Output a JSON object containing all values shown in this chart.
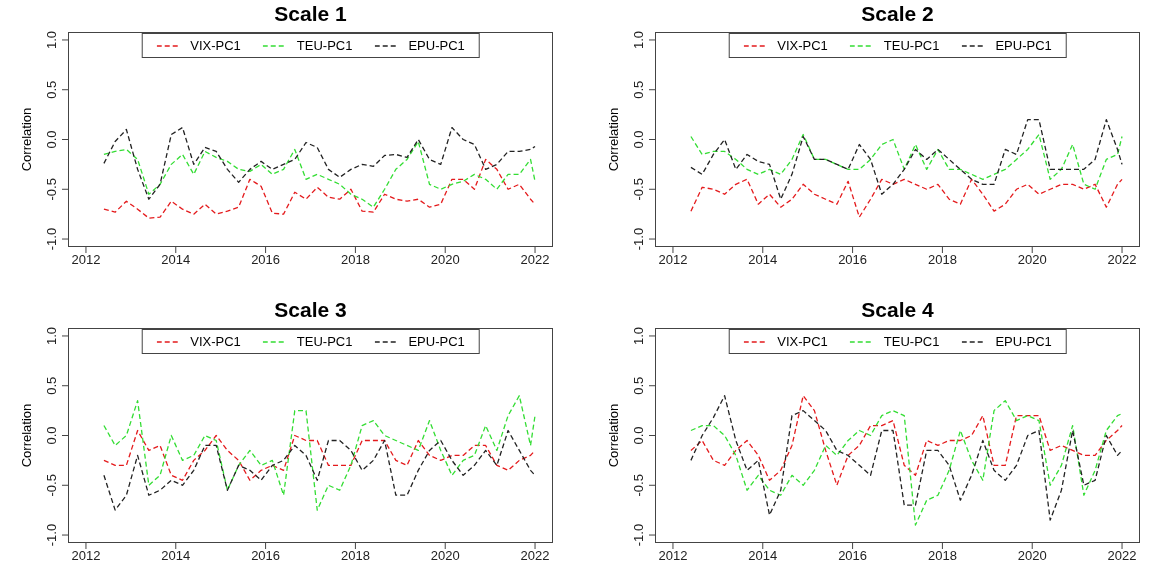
{
  "chart_data": [
    {
      "type": "line",
      "title": "Scale 1",
      "ylabel": "Correlation",
      "legend": "top",
      "line_style": "dashed",
      "marker": "none",
      "xlim": [
        2011.6,
        2022.4
      ],
      "ylim": [
        -1.08,
        1.08
      ],
      "xticks": [
        2012,
        2014,
        2016,
        2018,
        2020,
        2022
      ],
      "yticks": [
        {
          "value": -1,
          "label": "-1.0"
        },
        {
          "value": -0.5,
          "label": "-0.5"
        },
        {
          "value": 0,
          "label": "0.0"
        },
        {
          "value": 0.5,
          "label": "0.5"
        },
        {
          "value": 1,
          "label": "1.0"
        }
      ],
      "x": [
        2012.4,
        2012.65,
        2012.9,
        2013.15,
        2013.4,
        2013.65,
        2013.9,
        2014.15,
        2014.4,
        2014.65,
        2014.9,
        2015.15,
        2015.4,
        2015.65,
        2015.9,
        2016.15,
        2016.4,
        2016.65,
        2016.9,
        2017.15,
        2017.4,
        2017.65,
        2017.9,
        2018.15,
        2018.4,
        2018.65,
        2018.9,
        2019.15,
        2019.4,
        2019.65,
        2019.9,
        2020.15,
        2020.4,
        2020.65,
        2020.9,
        2021.15,
        2021.4,
        2021.65,
        2021.9,
        2022.0
      ],
      "series": [
        {
          "name": "VIX-PC1",
          "color": "#e41a1c",
          "values": [
            -0.7,
            -0.73,
            -0.62,
            -0.7,
            -0.79,
            -0.78,
            -0.62,
            -0.7,
            -0.75,
            -0.65,
            -0.75,
            -0.72,
            -0.68,
            -0.4,
            -0.47,
            -0.74,
            -0.75,
            -0.53,
            -0.6,
            -0.48,
            -0.58,
            -0.6,
            -0.5,
            -0.72,
            -0.73,
            -0.55,
            -0.6,
            -0.62,
            -0.6,
            -0.68,
            -0.65,
            -0.4,
            -0.4,
            -0.5,
            -0.2,
            -0.3,
            -0.5,
            -0.45,
            -0.6,
            -0.65
          ]
        },
        {
          "name": "TEU-PC1",
          "color": "#33dd33",
          "values": [
            -0.15,
            -0.12,
            -0.1,
            -0.2,
            -0.55,
            -0.45,
            -0.25,
            -0.15,
            -0.35,
            -0.12,
            -0.18,
            -0.22,
            -0.3,
            -0.32,
            -0.25,
            -0.35,
            -0.3,
            -0.1,
            -0.4,
            -0.35,
            -0.4,
            -0.45,
            -0.55,
            -0.6,
            -0.68,
            -0.5,
            -0.3,
            -0.2,
            -0.02,
            -0.45,
            -0.5,
            -0.45,
            -0.42,
            -0.35,
            -0.4,
            -0.5,
            -0.35,
            -0.35,
            -0.2,
            -0.42
          ]
        },
        {
          "name": "EPU-PC1",
          "color": "#222222",
          "values": [
            -0.24,
            -0.02,
            0.1,
            -0.3,
            -0.6,
            -0.45,
            0.05,
            0.12,
            -0.25,
            -0.08,
            -0.12,
            -0.3,
            -0.43,
            -0.3,
            -0.22,
            -0.3,
            -0.25,
            -0.2,
            -0.03,
            -0.08,
            -0.3,
            -0.38,
            -0.3,
            -0.25,
            -0.27,
            -0.16,
            -0.15,
            -0.18,
            0.0,
            -0.2,
            -0.25,
            0.12,
            0.0,
            -0.05,
            -0.3,
            -0.25,
            -0.12,
            -0.12,
            -0.1,
            -0.07
          ]
        }
      ]
    },
    {
      "type": "line",
      "title": "Scale 2",
      "ylabel": "Correlation",
      "legend": "top",
      "line_style": "dashed",
      "marker": "none",
      "xlim": [
        2011.6,
        2022.4
      ],
      "ylim": [
        -1.08,
        1.08
      ],
      "xticks": [
        2012,
        2014,
        2016,
        2018,
        2020,
        2022
      ],
      "yticks": [
        {
          "value": -1,
          "label": "-1.0"
        },
        {
          "value": -0.5,
          "label": "-0.5"
        },
        {
          "value": 0,
          "label": "0.0"
        },
        {
          "value": 0.5,
          "label": "0.5"
        },
        {
          "value": 1,
          "label": "1.0"
        }
      ],
      "x": [
        2012.4,
        2012.65,
        2012.9,
        2013.15,
        2013.4,
        2013.65,
        2013.9,
        2014.15,
        2014.4,
        2014.65,
        2014.9,
        2015.15,
        2015.4,
        2015.65,
        2015.9,
        2016.15,
        2016.4,
        2016.65,
        2016.9,
        2017.15,
        2017.4,
        2017.65,
        2017.9,
        2018.15,
        2018.4,
        2018.65,
        2018.9,
        2019.15,
        2019.4,
        2019.65,
        2019.9,
        2020.15,
        2020.4,
        2020.65,
        2020.9,
        2021.15,
        2021.4,
        2021.65,
        2021.9,
        2022.0
      ],
      "series": [
        {
          "name": "VIX-PC1",
          "color": "#e41a1c",
          "values": [
            -0.72,
            -0.48,
            -0.5,
            -0.55,
            -0.45,
            -0.4,
            -0.65,
            -0.55,
            -0.68,
            -0.6,
            -0.45,
            -0.55,
            -0.6,
            -0.65,
            -0.42,
            -0.78,
            -0.6,
            -0.4,
            -0.45,
            -0.4,
            -0.45,
            -0.5,
            -0.45,
            -0.6,
            -0.65,
            -0.4,
            -0.55,
            -0.72,
            -0.65,
            -0.5,
            -0.45,
            -0.55,
            -0.5,
            -0.45,
            -0.45,
            -0.5,
            -0.45,
            -0.68,
            -0.45,
            -0.4
          ]
        },
        {
          "name": "TEU-PC1",
          "color": "#33dd33",
          "values": [
            0.03,
            -0.15,
            -0.12,
            -0.12,
            -0.2,
            -0.3,
            -0.35,
            -0.3,
            -0.35,
            -0.2,
            0.05,
            -0.2,
            -0.2,
            -0.25,
            -0.3,
            -0.3,
            -0.2,
            -0.05,
            0.0,
            -0.3,
            -0.05,
            -0.3,
            -0.1,
            -0.3,
            -0.3,
            -0.35,
            -0.4,
            -0.35,
            -0.3,
            -0.2,
            -0.1,
            0.05,
            -0.4,
            -0.3,
            -0.05,
            -0.45,
            -0.5,
            -0.2,
            -0.15,
            0.03
          ]
        },
        {
          "name": "EPU-PC1",
          "color": "#222222",
          "values": [
            -0.28,
            -0.35,
            -0.15,
            0.0,
            -0.3,
            -0.15,
            -0.22,
            -0.25,
            -0.6,
            -0.35,
            0.03,
            -0.2,
            -0.2,
            -0.25,
            -0.3,
            -0.05,
            -0.2,
            -0.55,
            -0.45,
            -0.3,
            -0.1,
            -0.2,
            -0.1,
            -0.2,
            -0.3,
            -0.4,
            -0.45,
            -0.45,
            -0.1,
            -0.15,
            0.2,
            0.2,
            -0.3,
            -0.3,
            -0.3,
            -0.3,
            -0.2,
            0.2,
            -0.1,
            -0.25
          ]
        }
      ]
    },
    {
      "type": "line",
      "title": "Scale 3",
      "ylabel": "Correlation",
      "legend": "top",
      "line_style": "dashed",
      "marker": "none",
      "xlim": [
        2011.6,
        2022.4
      ],
      "ylim": [
        -1.08,
        1.08
      ],
      "xticks": [
        2012,
        2014,
        2016,
        2018,
        2020,
        2022
      ],
      "yticks": [
        {
          "value": -1,
          "label": "-1.0"
        },
        {
          "value": -0.5,
          "label": "-0.5"
        },
        {
          "value": 0,
          "label": "0.0"
        },
        {
          "value": 0.5,
          "label": "0.5"
        },
        {
          "value": 1,
          "label": "1.0"
        }
      ],
      "x": [
        2012.4,
        2012.65,
        2012.9,
        2013.15,
        2013.4,
        2013.65,
        2013.9,
        2014.15,
        2014.4,
        2014.65,
        2014.9,
        2015.15,
        2015.4,
        2015.65,
        2015.9,
        2016.15,
        2016.4,
        2016.65,
        2016.9,
        2017.15,
        2017.4,
        2017.65,
        2017.9,
        2018.15,
        2018.4,
        2018.65,
        2018.9,
        2019.15,
        2019.4,
        2019.65,
        2019.9,
        2020.15,
        2020.4,
        2020.65,
        2020.9,
        2021.15,
        2021.4,
        2021.65,
        2021.9,
        2022.0
      ],
      "series": [
        {
          "name": "VIX-PC1",
          "color": "#e41a1c",
          "values": [
            -0.25,
            -0.3,
            -0.3,
            0.05,
            -0.15,
            -0.1,
            -0.4,
            -0.45,
            -0.25,
            -0.15,
            0.0,
            -0.15,
            -0.25,
            -0.45,
            -0.35,
            -0.3,
            -0.35,
            0.0,
            -0.05,
            -0.05,
            -0.3,
            -0.3,
            -0.3,
            -0.05,
            -0.05,
            -0.05,
            -0.25,
            -0.3,
            -0.05,
            -0.2,
            -0.25,
            -0.2,
            -0.2,
            -0.1,
            -0.1,
            -0.3,
            -0.35,
            -0.25,
            -0.2,
            -0.15
          ]
        },
        {
          "name": "TEU-PC1",
          "color": "#33dd33",
          "values": [
            0.1,
            -0.1,
            0.0,
            0.35,
            -0.5,
            -0.4,
            0.0,
            -0.25,
            -0.2,
            0.0,
            -0.05,
            -0.55,
            -0.3,
            -0.15,
            -0.3,
            -0.25,
            -0.6,
            0.25,
            0.25,
            -0.75,
            -0.5,
            -0.55,
            -0.3,
            0.1,
            0.15,
            0.0,
            -0.05,
            -0.1,
            -0.15,
            0.15,
            -0.15,
            -0.4,
            -0.25,
            -0.2,
            0.1,
            -0.15,
            0.2,
            0.4,
            -0.1,
            0.2
          ]
        },
        {
          "name": "EPU-PC1",
          "color": "#222222",
          "values": [
            -0.4,
            -0.75,
            -0.6,
            -0.2,
            -0.6,
            -0.55,
            -0.45,
            -0.5,
            -0.35,
            -0.1,
            -0.1,
            -0.55,
            -0.3,
            -0.35,
            -0.45,
            -0.3,
            -0.25,
            -0.1,
            -0.2,
            -0.45,
            -0.05,
            -0.05,
            -0.15,
            -0.35,
            -0.25,
            -0.05,
            -0.6,
            -0.6,
            -0.35,
            -0.15,
            -0.05,
            -0.25,
            -0.4,
            -0.3,
            -0.15,
            -0.3,
            0.05,
            -0.15,
            -0.35,
            -0.4
          ]
        }
      ]
    },
    {
      "type": "line",
      "title": "Scale 4",
      "ylabel": "Correlation",
      "legend": "top",
      "line_style": "dashed",
      "marker": "none",
      "xlim": [
        2011.6,
        2022.4
      ],
      "ylim": [
        -1.08,
        1.08
      ],
      "xticks": [
        2012,
        2014,
        2016,
        2018,
        2020,
        2022
      ],
      "yticks": [
        {
          "value": -1,
          "label": "-1.0"
        },
        {
          "value": -0.5,
          "label": "-0.5"
        },
        {
          "value": 0,
          "label": "0.0"
        },
        {
          "value": 0.5,
          "label": "0.5"
        },
        {
          "value": 1,
          "label": "1.0"
        }
      ],
      "x": [
        2012.4,
        2012.65,
        2012.9,
        2013.15,
        2013.4,
        2013.65,
        2013.9,
        2014.15,
        2014.4,
        2014.65,
        2014.9,
        2015.15,
        2015.4,
        2015.65,
        2015.9,
        2016.15,
        2016.4,
        2016.65,
        2016.9,
        2017.15,
        2017.4,
        2017.65,
        2017.9,
        2018.15,
        2018.4,
        2018.65,
        2018.9,
        2019.15,
        2019.4,
        2019.65,
        2019.9,
        2020.15,
        2020.4,
        2020.65,
        2020.9,
        2021.15,
        2021.4,
        2021.65,
        2021.9,
        2022.0
      ],
      "series": [
        {
          "name": "VIX-PC1",
          "color": "#e41a1c",
          "values": [
            -0.15,
            -0.05,
            -0.25,
            -0.3,
            -0.15,
            -0.05,
            -0.2,
            -0.45,
            -0.35,
            -0.1,
            0.4,
            0.25,
            -0.15,
            -0.5,
            -0.2,
            -0.1,
            0.1,
            0.1,
            0.15,
            -0.3,
            -0.4,
            -0.05,
            -0.1,
            -0.05,
            -0.05,
            0.0,
            0.2,
            -0.3,
            -0.3,
            0.2,
            0.2,
            0.2,
            -0.15,
            -0.1,
            -0.15,
            -0.2,
            -0.2,
            -0.05,
            0.05,
            0.1
          ]
        },
        {
          "name": "TEU-PC1",
          "color": "#33dd33",
          "values": [
            0.05,
            0.1,
            0.1,
            0.0,
            -0.2,
            -0.55,
            -0.4,
            -0.55,
            -0.6,
            -0.4,
            -0.5,
            -0.35,
            -0.1,
            -0.2,
            -0.05,
            0.05,
            0.0,
            0.2,
            0.25,
            0.2,
            -0.9,
            -0.65,
            -0.6,
            -0.35,
            0.05,
            -0.25,
            -0.45,
            0.25,
            0.35,
            0.15,
            0.2,
            0.15,
            -0.5,
            -0.3,
            0.1,
            -0.6,
            -0.35,
            0.05,
            0.2,
            0.22
          ]
        },
        {
          "name": "EPU-PC1",
          "color": "#222222",
          "values": [
            -0.25,
            0.0,
            0.18,
            0.4,
            -0.05,
            -0.35,
            -0.25,
            -0.8,
            -0.55,
            0.2,
            0.25,
            0.15,
            0.05,
            -0.15,
            -0.2,
            -0.3,
            -0.4,
            0.05,
            0.05,
            -0.7,
            -0.7,
            -0.15,
            -0.15,
            -0.3,
            -0.65,
            -0.4,
            -0.05,
            -0.35,
            -0.45,
            -0.3,
            0.0,
            0.05,
            -0.85,
            -0.55,
            0.05,
            -0.5,
            -0.45,
            0.0,
            -0.2,
            -0.15
          ]
        }
      ]
    }
  ]
}
